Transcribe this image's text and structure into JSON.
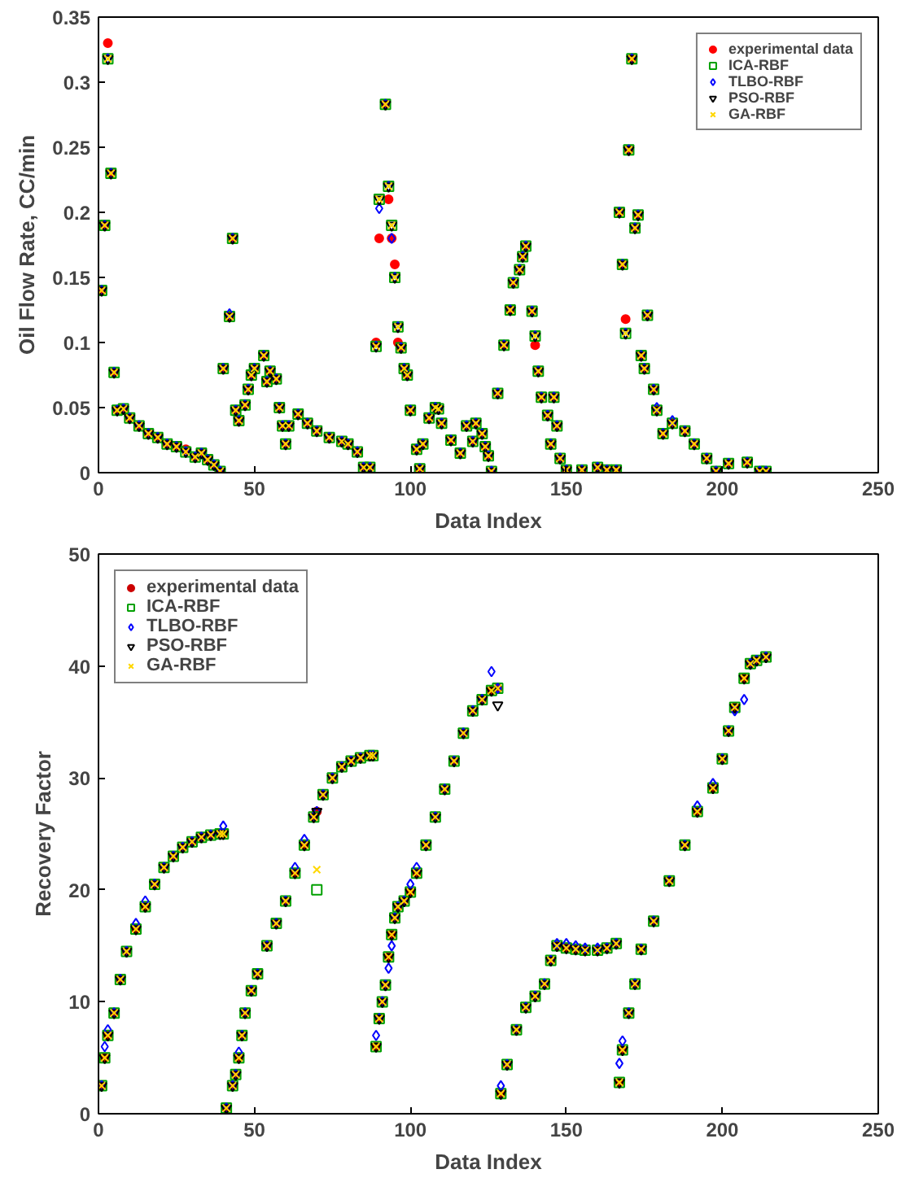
{
  "chart_data": [
    {
      "type": "scatter",
      "xlabel": "Data Index",
      "ylabel": "Oil Flow Rate, CC/min",
      "xlim": [
        0,
        250
      ],
      "xticks": [
        0,
        50,
        100,
        150,
        200,
        250
      ],
      "ylim": [
        0,
        0.35
      ],
      "yticks": [
        0,
        0.05,
        0.1,
        0.15,
        0.2,
        0.25,
        0.3,
        0.35
      ],
      "grid": false,
      "legend": "top right",
      "x": [
        1,
        2,
        3,
        4,
        5,
        6,
        8,
        10,
        13,
        16,
        19,
        22,
        25,
        28,
        31,
        33,
        35,
        37,
        39,
        40,
        42,
        43,
        44,
        45,
        47,
        48,
        49,
        50,
        53,
        54,
        55,
        57,
        58,
        59,
        60,
        61,
        64,
        67,
        70,
        74,
        78,
        80,
        83,
        85,
        87,
        89,
        90,
        92,
        93,
        94,
        95,
        96,
        97,
        98,
        99,
        100,
        102,
        103,
        104,
        106,
        108,
        109,
        110,
        113,
        116,
        118,
        120,
        121,
        123,
        124,
        125,
        126,
        128,
        130,
        132,
        133,
        135,
        136,
        137,
        139,
        140,
        141,
        142,
        144,
        145,
        146,
        147,
        148,
        150,
        155,
        160,
        163,
        166,
        167,
        168,
        169,
        170,
        171,
        172,
        173,
        174,
        175,
        176,
        178,
        179,
        181,
        184,
        188,
        191,
        195,
        198,
        202,
        208,
        212,
        214
      ],
      "series": [
        {
          "name": "experimental data",
          "color": "#ff0000",
          "marker": "circle",
          "values": [
            0.14,
            0.19,
            0.33,
            0.23,
            0.077,
            0.048,
            0.049,
            0.042,
            0.036,
            0.03,
            0.027,
            0.022,
            0.02,
            0.018,
            0.012,
            0.015,
            0.01,
            0.006,
            0.001,
            0.08,
            0.12,
            0.18,
            0.048,
            0.04,
            0.052,
            0.064,
            0.075,
            0.08,
            0.09,
            0.07,
            0.078,
            0.072,
            0.05,
            0.036,
            0.022,
            0.036,
            0.045,
            0.038,
            0.032,
            0.027,
            0.024,
            0.022,
            0.016,
            0.004,
            0.004,
            0.1,
            0.18,
            0.283,
            0.21,
            0.18,
            0.16,
            0.1,
            0.096,
            0.08,
            0.075,
            0.048,
            0.018,
            0.003,
            0.022,
            0.042,
            0.05,
            0.049,
            0.038,
            0.025,
            0.015,
            0.036,
            0.024,
            0.038,
            0.03,
            0.02,
            0.013,
            0.001,
            0.061,
            0.098,
            0.125,
            0.146,
            0.156,
            0.166,
            0.174,
            0.124,
            0.098,
            0.078,
            0.058,
            0.044,
            0.022,
            0.058,
            0.036,
            0.011,
            0.002,
            0.002,
            0.004,
            0.002,
            0.002,
            0.2,
            0.16,
            0.118,
            0.248,
            0.318,
            0.188,
            0.198,
            0.09,
            0.08,
            0.121,
            0.064,
            0.048,
            0.03,
            0.038,
            0.032,
            0.022,
            0.011,
            0.001,
            0.007,
            0.008,
            0.001,
            0.001
          ]
        },
        {
          "name": "ICA-RBF",
          "color": "#00a000",
          "marker": "square",
          "values": [
            0.14,
            0.19,
            0.318,
            0.23,
            0.077,
            0.048,
            0.049,
            0.042,
            0.036,
            0.03,
            0.027,
            0.022,
            0.02,
            0.016,
            0.012,
            0.015,
            0.01,
            0.006,
            0.001,
            0.08,
            0.12,
            0.18,
            0.048,
            0.04,
            0.052,
            0.064,
            0.075,
            0.08,
            0.09,
            0.07,
            0.078,
            0.072,
            0.05,
            0.036,
            0.022,
            0.036,
            0.045,
            0.038,
            0.032,
            0.027,
            0.024,
            0.022,
            0.016,
            0.004,
            0.004,
            0.097,
            0.21,
            0.283,
            0.22,
            0.19,
            0.15,
            0.112,
            0.096,
            0.08,
            0.075,
            0.048,
            0.018,
            0.003,
            0.022,
            0.042,
            0.05,
            0.049,
            0.038,
            0.025,
            0.015,
            0.036,
            0.024,
            0.038,
            0.03,
            0.02,
            0.013,
            0.001,
            0.061,
            0.098,
            0.125,
            0.146,
            0.156,
            0.166,
            0.174,
            0.124,
            0.105,
            0.078,
            0.058,
            0.044,
            0.022,
            0.058,
            0.036,
            0.011,
            0.002,
            0.002,
            0.004,
            0.002,
            0.002,
            0.2,
            0.16,
            0.107,
            0.248,
            0.318,
            0.188,
            0.198,
            0.09,
            0.08,
            0.121,
            0.064,
            0.048,
            0.03,
            0.038,
            0.032,
            0.022,
            0.011,
            0.001,
            0.007,
            0.008,
            0.001,
            0.001
          ]
        },
        {
          "name": "TLBO-RBF",
          "color": "#0000ff",
          "marker": "diamond",
          "values": [
            0.14,
            0.19,
            0.318,
            0.23,
            0.077,
            0.048,
            0.049,
            0.042,
            0.036,
            0.03,
            0.027,
            0.022,
            0.02,
            0.016,
            0.012,
            0.015,
            0.01,
            0.006,
            0.001,
            0.08,
            0.122,
            0.18,
            0.048,
            0.04,
            0.052,
            0.064,
            0.075,
            0.08,
            0.09,
            0.07,
            0.078,
            0.072,
            0.05,
            0.036,
            0.022,
            0.036,
            0.045,
            0.038,
            0.032,
            0.027,
            0.024,
            0.022,
            0.016,
            0.004,
            0.004,
            0.097,
            0.203,
            0.283,
            0.22,
            0.18,
            0.15,
            0.112,
            0.096,
            0.08,
            0.075,
            0.048,
            0.018,
            0.003,
            0.022,
            0.042,
            0.05,
            0.049,
            0.038,
            0.025,
            0.015,
            0.036,
            0.024,
            0.038,
            0.03,
            0.02,
            0.013,
            0.001,
            0.061,
            0.098,
            0.125,
            0.146,
            0.156,
            0.166,
            0.174,
            0.124,
            0.105,
            0.078,
            0.058,
            0.044,
            0.022,
            0.058,
            0.036,
            0.011,
            0.002,
            0.002,
            0.004,
            0.002,
            0.002,
            0.2,
            0.16,
            0.107,
            0.248,
            0.318,
            0.188,
            0.198,
            0.09,
            0.08,
            0.121,
            0.064,
            0.05,
            0.03,
            0.04,
            0.032,
            0.022,
            0.011,
            0.001,
            0.007,
            0.008,
            0.001,
            0.001
          ]
        },
        {
          "name": "PSO-RBF",
          "color": "#000000",
          "marker": "triangle",
          "values": [
            0.14,
            0.19,
            0.318,
            0.23,
            0.077,
            0.048,
            0.049,
            0.042,
            0.036,
            0.03,
            0.027,
            0.022,
            0.02,
            0.016,
            0.012,
            0.015,
            0.01,
            0.006,
            0.001,
            0.08,
            0.12,
            0.18,
            0.048,
            0.04,
            0.052,
            0.064,
            0.075,
            0.08,
            0.09,
            0.07,
            0.078,
            0.072,
            0.05,
            0.036,
            0.022,
            0.036,
            0.045,
            0.038,
            0.032,
            0.027,
            0.024,
            0.022,
            0.016,
            0.004,
            0.004,
            0.097,
            0.21,
            0.283,
            0.22,
            0.19,
            0.15,
            0.112,
            0.096,
            0.08,
            0.075,
            0.048,
            0.018,
            0.003,
            0.022,
            0.042,
            0.05,
            0.049,
            0.038,
            0.025,
            0.015,
            0.036,
            0.024,
            0.038,
            0.03,
            0.02,
            0.013,
            0.001,
            0.061,
            0.098,
            0.125,
            0.146,
            0.156,
            0.166,
            0.174,
            0.124,
            0.105,
            0.078,
            0.058,
            0.044,
            0.022,
            0.058,
            0.036,
            0.011,
            0.002,
            0.002,
            0.004,
            0.002,
            0.002,
            0.2,
            0.16,
            0.107,
            0.248,
            0.318,
            0.188,
            0.198,
            0.09,
            0.08,
            0.121,
            0.064,
            0.048,
            0.03,
            0.038,
            0.032,
            0.022,
            0.011,
            0.001,
            0.007,
            0.008,
            0.001,
            0.001
          ]
        },
        {
          "name": "GA-RBF",
          "color": "#ffd700",
          "marker": "cross",
          "values": [
            0.14,
            0.19,
            0.318,
            0.23,
            0.077,
            0.048,
            0.049,
            0.042,
            0.036,
            0.03,
            0.027,
            0.022,
            0.02,
            0.016,
            0.012,
            0.015,
            0.01,
            0.006,
            0.001,
            0.08,
            0.12,
            0.18,
            0.048,
            0.04,
            0.052,
            0.064,
            0.075,
            0.08,
            0.09,
            0.07,
            0.078,
            0.072,
            0.05,
            0.036,
            0.022,
            0.036,
            0.045,
            0.038,
            0.032,
            0.027,
            0.024,
            0.022,
            0.016,
            0.004,
            0.004,
            0.097,
            0.21,
            0.283,
            0.22,
            0.19,
            0.15,
            0.112,
            0.096,
            0.08,
            0.075,
            0.048,
            0.018,
            0.003,
            0.022,
            0.042,
            0.05,
            0.049,
            0.038,
            0.025,
            0.015,
            0.036,
            0.024,
            0.038,
            0.03,
            0.02,
            0.013,
            0.001,
            0.061,
            0.098,
            0.125,
            0.146,
            0.156,
            0.166,
            0.174,
            0.124,
            0.105,
            0.078,
            0.058,
            0.044,
            0.022,
            0.058,
            0.036,
            0.011,
            0.002,
            0.002,
            0.004,
            0.002,
            0.002,
            0.2,
            0.16,
            0.107,
            0.248,
            0.318,
            0.188,
            0.198,
            0.09,
            0.08,
            0.121,
            0.064,
            0.048,
            0.03,
            0.038,
            0.032,
            0.022,
            0.011,
            0.001,
            0.007,
            0.008,
            0.001,
            0.001
          ]
        }
      ]
    },
    {
      "type": "scatter",
      "xlabel": "Data Index",
      "ylabel": "Recovery Factor",
      "xlim": [
        0,
        250
      ],
      "xticks": [
        0,
        50,
        100,
        150,
        200,
        250
      ],
      "ylim": [
        0,
        50
      ],
      "yticks": [
        0,
        10,
        20,
        30,
        40,
        50
      ],
      "grid": false,
      "legend": "top left",
      "x": [
        1,
        2,
        3,
        5,
        7,
        9,
        12,
        15,
        18,
        21,
        24,
        27,
        30,
        33,
        36,
        39,
        40,
        41,
        43,
        44,
        45,
        46,
        47,
        49,
        51,
        54,
        57,
        60,
        63,
        66,
        69,
        70,
        72,
        75,
        78,
        81,
        84,
        87,
        88,
        89,
        90,
        91,
        92,
        93,
        94,
        95,
        96,
        98,
        100,
        102,
        105,
        108,
        111,
        114,
        117,
        120,
        123,
        126,
        128,
        129,
        131,
        134,
        137,
        140,
        143,
        145,
        147,
        150,
        153,
        156,
        160,
        163,
        166,
        167,
        168,
        170,
        172,
        174,
        178,
        183,
        188,
        192,
        197,
        200,
        202,
        204,
        207,
        209,
        211,
        214
      ],
      "series": [
        {
          "name": "experimental data",
          "color": "#cc0000",
          "marker": "circle",
          "values": [
            2.5,
            5,
            7,
            9,
            12,
            14.5,
            16.5,
            18.5,
            20.5,
            22,
            23,
            23.8,
            24.3,
            24.7,
            24.9,
            25,
            25,
            0.5,
            2.5,
            3.5,
            5,
            7,
            9,
            11,
            12.5,
            15,
            17,
            19,
            21.5,
            24,
            26.5,
            27,
            28.5,
            30,
            31,
            31.5,
            31.8,
            32,
            32,
            6,
            8.5,
            10,
            11.5,
            14,
            16,
            17.5,
            18.5,
            19,
            19.8,
            21.5,
            24,
            26.5,
            29,
            31.5,
            34,
            36,
            37,
            37.8,
            38,
            1.8,
            4.4,
            7.5,
            9.5,
            10.5,
            11.6,
            13.7,
            15,
            14.8,
            14.7,
            14.6,
            14.6,
            14.8,
            15.2,
            2.8,
            5.7,
            9,
            11.6,
            14.7,
            17.2,
            20.8,
            24,
            27,
            29.1,
            31.7,
            34.2,
            36.3,
            38.9,
            40.2,
            40.5,
            40.8
          ]
        },
        {
          "name": "ICA-RBF",
          "color": "#00a000",
          "marker": "square",
          "values": [
            2.5,
            5,
            7,
            9,
            12,
            14.5,
            16.5,
            18.5,
            20.5,
            22,
            23,
            23.8,
            24.3,
            24.7,
            24.9,
            25,
            25,
            0.5,
            2.5,
            3.5,
            5,
            7,
            9,
            11,
            12.5,
            15,
            17,
            19,
            21.5,
            24,
            26.5,
            20,
            28.5,
            30,
            31,
            31.5,
            31.8,
            32,
            32,
            6,
            8.5,
            10,
            11.5,
            14,
            16,
            17.5,
            18.5,
            19,
            19.8,
            21.5,
            24,
            26.5,
            29,
            31.5,
            34,
            36,
            37,
            37.8,
            38,
            1.8,
            4.4,
            7.5,
            9.5,
            10.5,
            11.6,
            13.7,
            15,
            14.8,
            14.7,
            14.6,
            14.6,
            14.8,
            15.2,
            2.8,
            5.7,
            9,
            11.6,
            14.7,
            17.2,
            20.8,
            24,
            27,
            29.1,
            31.7,
            34.2,
            36.3,
            38.9,
            40.2,
            40.5,
            40.8
          ]
        },
        {
          "name": "TLBO-RBF",
          "color": "#0000ff",
          "marker": "diamond",
          "values": [
            2.5,
            6,
            7.5,
            9,
            12,
            14.5,
            17,
            19,
            20.5,
            22,
            23,
            23.8,
            24.3,
            24.7,
            24.9,
            25,
            25.7,
            0.5,
            2.5,
            3.5,
            5.5,
            7,
            9,
            11,
            12.5,
            15,
            17,
            19,
            22,
            24.5,
            26.5,
            27,
            28.5,
            30,
            31,
            31.5,
            31.8,
            32,
            32,
            7,
            8.5,
            10,
            11.5,
            13,
            15,
            17.5,
            18.5,
            19,
            20.5,
            22,
            24,
            26.5,
            29,
            31.5,
            34,
            36,
            37,
            39.5,
            38,
            2.5,
            4.4,
            7.5,
            9.5,
            10.5,
            11.6,
            13.7,
            15.2,
            15.2,
            15,
            14.8,
            14.8,
            14.8,
            15.2,
            4.5,
            6.5,
            9,
            11.6,
            14.7,
            17.2,
            20.8,
            24,
            27.5,
            29.5,
            31.7,
            34.2,
            36,
            37,
            40.2,
            40.5,
            40.8
          ]
        },
        {
          "name": "PSO-RBF",
          "color": "#000000",
          "marker": "triangle",
          "values": [
            2.5,
            5,
            7,
            9,
            12,
            14.5,
            16.5,
            18.5,
            20.5,
            22,
            23,
            23.8,
            24.3,
            24.7,
            24.9,
            25,
            25,
            0.5,
            2.5,
            3.5,
            5,
            7,
            9,
            11,
            12.5,
            15,
            17,
            19,
            21.5,
            24,
            26.5,
            27,
            28.5,
            30,
            31,
            31.5,
            31.8,
            32,
            32,
            6,
            8.5,
            10,
            11.5,
            14,
            16,
            17.5,
            18.5,
            19,
            19.8,
            21.5,
            24,
            26.5,
            29,
            31.5,
            34,
            36,
            37,
            37.8,
            36.5,
            1.8,
            4.4,
            7.5,
            9.5,
            10.5,
            11.6,
            13.7,
            15,
            14.8,
            14.7,
            14.6,
            14.6,
            14.8,
            15.2,
            2.8,
            5.7,
            9,
            11.6,
            14.7,
            17.2,
            20.8,
            24,
            27,
            29.1,
            31.7,
            34.2,
            36.3,
            38.9,
            40.2,
            40.5,
            40.8
          ]
        },
        {
          "name": "GA-RBF",
          "color": "#ffd700",
          "marker": "cross",
          "values": [
            2.5,
            5,
            7,
            9,
            12,
            14.5,
            16.5,
            18.5,
            20.5,
            22,
            23,
            23.8,
            24.3,
            24.7,
            24.9,
            25,
            25,
            0.5,
            2.5,
            3.5,
            5,
            7,
            9,
            11,
            12.5,
            15,
            17,
            19,
            21.5,
            24,
            26.5,
            21.8,
            28.5,
            30,
            31,
            31.5,
            31.8,
            32,
            32,
            6,
            8.5,
            10,
            11.5,
            14,
            16,
            17.5,
            18.5,
            19,
            19.8,
            21.5,
            24,
            26.5,
            29,
            31.5,
            34,
            36,
            37,
            37.8,
            38,
            1.8,
            4.4,
            7.5,
            9.5,
            10.5,
            11.6,
            13.7,
            15,
            14.8,
            14.7,
            14.6,
            14.6,
            14.8,
            15.2,
            2.8,
            5.7,
            9,
            11.6,
            14.7,
            17.2,
            20.8,
            24,
            27,
            29.1,
            31.7,
            34.2,
            36.3,
            38.9,
            40.2,
            40.5,
            40.8
          ]
        }
      ]
    }
  ]
}
